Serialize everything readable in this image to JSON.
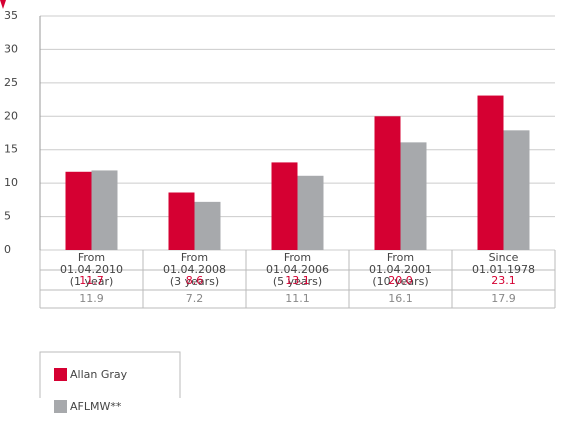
{
  "chart_data": {
    "type": "bar",
    "categories": [
      [
        "From",
        "01.04.2010",
        "(1 year)"
      ],
      [
        "From",
        "01.04.2008",
        "(3 years)"
      ],
      [
        "From",
        "01.04.2006",
        "(5 years)"
      ],
      [
        "From",
        "01.04.2001",
        "(10 years)"
      ],
      [
        "Since",
        "01.01.1978"
      ]
    ],
    "series": [
      {
        "name": "Allan Gray",
        "color": "#d50032",
        "values": [
          11.7,
          8.6,
          13.1,
          20.0,
          23.1
        ],
        "value_labels": [
          "11.7",
          "8.6",
          "13.1",
          "20.0",
          "23.1"
        ]
      },
      {
        "name": "AFLMW**",
        "color": "#a7a9ac",
        "values": [
          11.9,
          7.2,
          11.1,
          16.1,
          17.9
        ],
        "value_labels": [
          "11.9",
          "7.2",
          "11.1",
          "16.1",
          "17.9"
        ]
      }
    ],
    "ylim": [
      0,
      35
    ],
    "yticks": [
      0,
      5,
      10,
      15,
      20,
      25,
      30,
      35
    ],
    "grid": true
  }
}
